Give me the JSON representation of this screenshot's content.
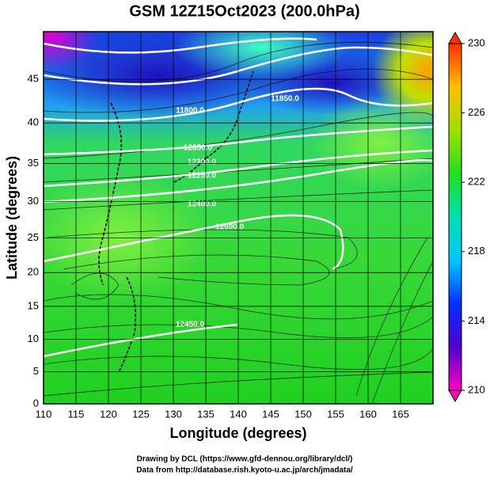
{
  "map": {
    "title": "GSM 12Z15Oct2023 (200.0hPa)",
    "x_label": "Longitude (degrees)",
    "y_label": "Latitude  (degrees)",
    "xlim": [
      110,
      170
    ],
    "xticks": [
      110,
      115,
      120,
      125,
      130,
      135,
      140,
      145,
      150,
      155,
      160,
      165
    ],
    "ylim": [
      0,
      50
    ],
    "yticks": [
      0,
      5,
      10,
      15,
      20,
      25,
      30,
      35,
      40,
      45
    ],
    "projection": "mercator",
    "colorbar": {
      "lim": [
        210,
        230
      ],
      "ticks": [
        210,
        214,
        218,
        222,
        226,
        230
      ],
      "colors": [
        "#ff00c0",
        "#5000d0",
        "#0030ff",
        "#00c8ff",
        "#00e0b0",
        "#20e020",
        "#a0e000",
        "#ffc000",
        "#ff3000"
      ]
    },
    "contour_labels": [
      "11800.0",
      "11850.0",
      "12350.0",
      "12300.0",
      "12250.0",
      "12400.0",
      "12500.0",
      "12450.0"
    ],
    "footer": [
      "Drawing by DCL (https://www.gfd-dennou.org/library/dcl/)",
      "Data from http://database.rish.kyoto-u.ac.jp/arch/jmadata/"
    ]
  }
}
